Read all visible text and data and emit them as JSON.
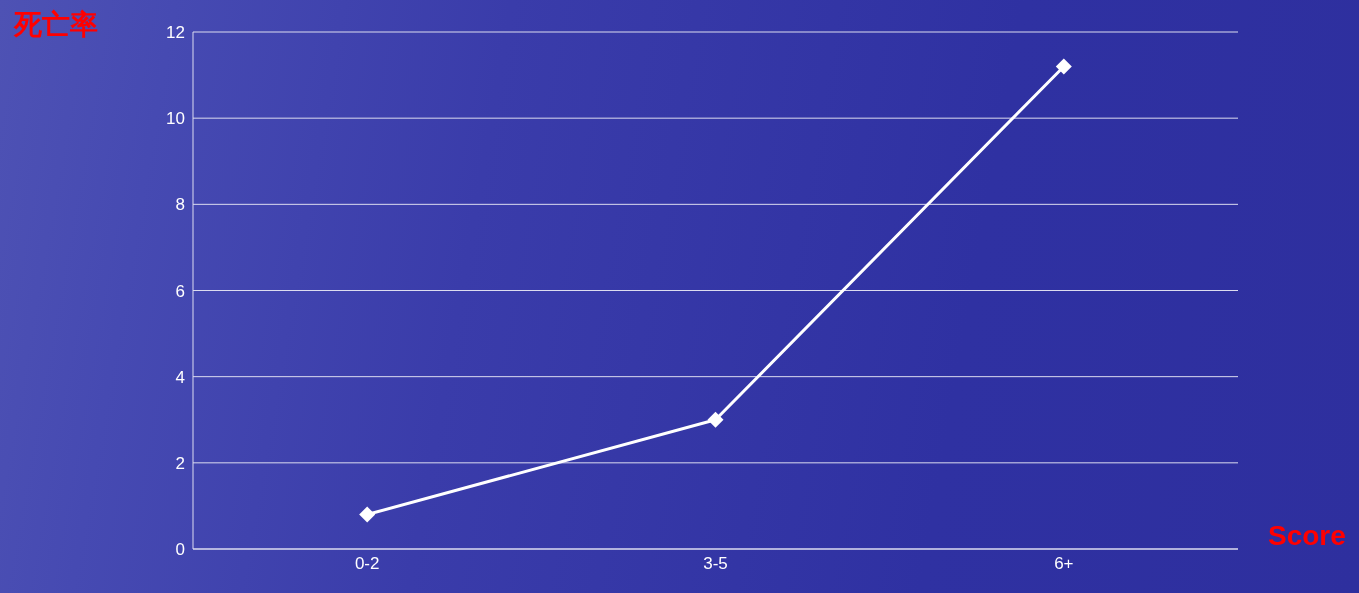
{
  "chart_data": {
    "type": "line",
    "ylabel": "死亡率",
    "xlabel": "Score",
    "categories": [
      "0-2",
      "3-5",
      "6+"
    ],
    "series": [
      {
        "color": "#ffffff",
        "values": [
          0.8,
          3.0,
          11.2
        ]
      }
    ],
    "ylim": [
      0,
      12
    ],
    "yticks": [
      0,
      2,
      4,
      6,
      8,
      10,
      12
    ],
    "grid": "y",
    "marker": "diamond",
    "line_style": "solid",
    "legend": false
  }
}
